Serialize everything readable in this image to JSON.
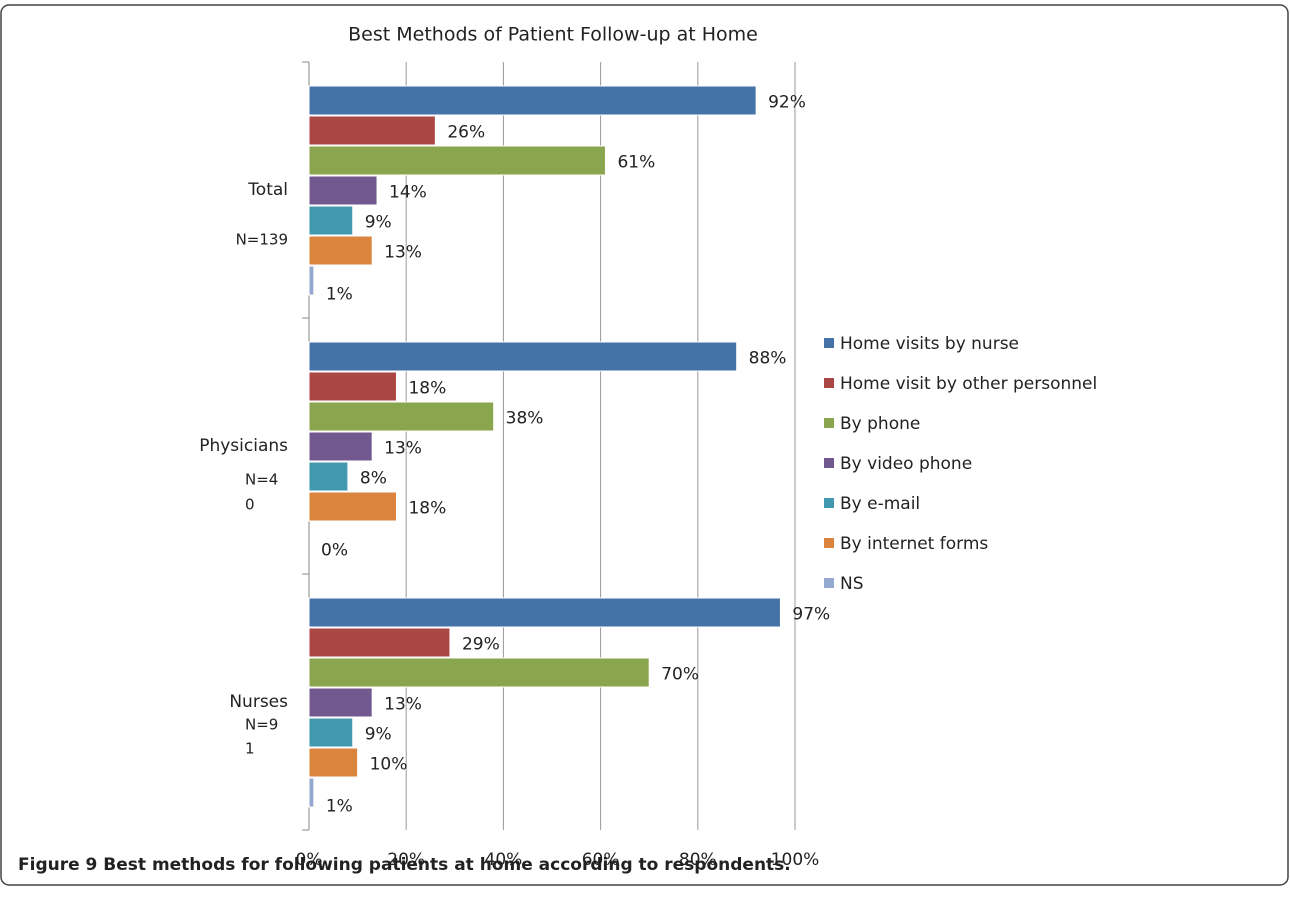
{
  "chart_data": {
    "type": "barh",
    "title": "Best Methods of Patient Follow-up at Home",
    "categories": [
      "Total",
      "Physicians",
      "Nurses"
    ],
    "category_notes": [
      [
        "N=139"
      ],
      [
        "N=4",
        "0"
      ],
      [
        "N=9",
        "1"
      ]
    ],
    "series": [
      {
        "name": "Home visits by nurse",
        "color": "#4572a7",
        "values": [
          92,
          88,
          97
        ],
        "value_labels": [
          "92%",
          "88%",
          "97%"
        ]
      },
      {
        "name": "Home visit by other personnel",
        "color": "#aa4643",
        "values": [
          26,
          18,
          29
        ],
        "value_labels": [
          "26%",
          "18%",
          "29%"
        ]
      },
      {
        "name": "By phone",
        "color": "#89a54e",
        "values": [
          61,
          38,
          70
        ],
        "value_labels": [
          "61%",
          "38%",
          "70%"
        ]
      },
      {
        "name": "By video phone",
        "color": "#71588f",
        "values": [
          14,
          13,
          13
        ],
        "value_labels": [
          "14%",
          "13%",
          "13%"
        ]
      },
      {
        "name": "By e-mail",
        "color": "#4198af",
        "values": [
          9,
          8,
          9
        ],
        "value_labels": [
          "9%",
          "8%",
          "9%"
        ]
      },
      {
        "name": "By internet forms",
        "color": "#db843d",
        "values": [
          13,
          18,
          10
        ],
        "value_labels": [
          "13%",
          "18%",
          "10%"
        ]
      },
      {
        "name": "NS",
        "color": "#93a9cf",
        "values": [
          1,
          0,
          1
        ],
        "value_labels": [
          "1%",
          "0%",
          "1%"
        ]
      }
    ],
    "xlim": [
      0,
      100
    ],
    "xticks": [
      {
        "value": 0,
        "label": "0%"
      },
      {
        "value": 20,
        "label": "20%"
      },
      {
        "value": 40,
        "label": "40%"
      },
      {
        "value": 60,
        "label": "60%"
      },
      {
        "value": 80,
        "label": "80%"
      },
      {
        "value": 100,
        "label": "100%"
      }
    ],
    "grid": true,
    "legend": "right",
    "caption": "Figure 9 Best methods for following patients at home according to respondents."
  }
}
